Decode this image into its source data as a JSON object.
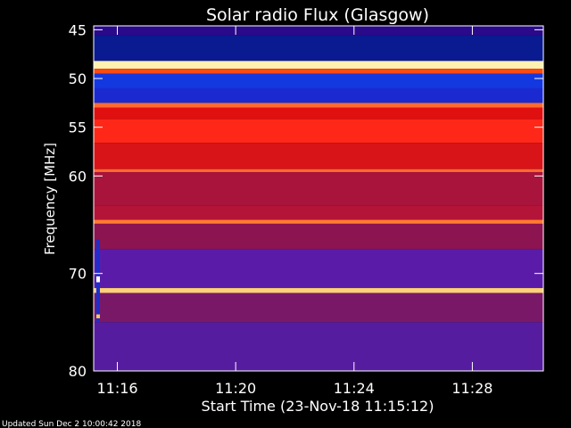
{
  "chart_data": {
    "type": "heatmap",
    "title": "Solar radio Flux (Glasgow)",
    "ylabel": "Frequency [MHz]",
    "xlabel": "Start Time (23-Nov-18 11:15:12)",
    "footer": "Updated Sun Dec  2 10:00:42 2018",
    "x_unit": "minutes after 11:15:12",
    "xlim": [
      0,
      15.2
    ],
    "ylim": [
      80,
      44.6
    ],
    "x_ticks": [
      {
        "value": 0.8,
        "label": "11:16"
      },
      {
        "value": 4.8,
        "label": "11:20"
      },
      {
        "value": 8.8,
        "label": "11:24"
      },
      {
        "value": 12.8,
        "label": "11:28"
      }
    ],
    "y_ticks": [
      {
        "value": 45,
        "label": "45"
      },
      {
        "value": 50,
        "label": "50"
      },
      {
        "value": 55,
        "label": "55"
      },
      {
        "value": 60,
        "label": "60"
      },
      {
        "value": 70,
        "label": "70"
      },
      {
        "value": 80,
        "label": "80"
      }
    ],
    "bands": [
      {
        "f0": 44.6,
        "f1": 45.6,
        "color": "#2a0a8a"
      },
      {
        "f0": 45.6,
        "f1": 48.2,
        "color": "#0a1a90"
      },
      {
        "f0": 48.2,
        "f1": 49.0,
        "color": "#fff2b0"
      },
      {
        "f0": 49.0,
        "f1": 49.5,
        "color": "#ff4a10"
      },
      {
        "f0": 49.5,
        "f1": 51.0,
        "color": "#1438e0"
      },
      {
        "f0": 51.0,
        "f1": 52.5,
        "color": "#1a2ad0"
      },
      {
        "f0": 52.5,
        "f1": 53.0,
        "color": "#ff6a30"
      },
      {
        "f0": 53.0,
        "f1": 54.2,
        "color": "#e01010"
      },
      {
        "f0": 54.2,
        "f1": 56.6,
        "color": "#ff2818"
      },
      {
        "f0": 56.6,
        "f1": 59.3,
        "color": "#d81418"
      },
      {
        "f0": 59.3,
        "f1": 59.6,
        "color": "#ff6a30"
      },
      {
        "f0": 59.6,
        "f1": 63.0,
        "color": "#a8143c"
      },
      {
        "f0": 63.0,
        "f1": 64.5,
        "color": "#b41438"
      },
      {
        "f0": 64.5,
        "f1": 64.9,
        "color": "#ff7a30"
      },
      {
        "f0": 64.9,
        "f1": 67.5,
        "color": "#8c1450"
      },
      {
        "f0": 67.5,
        "f1": 71.5,
        "color": "#5a1ca8"
      },
      {
        "f0": 71.5,
        "f1": 72.0,
        "color": "#ffd27a"
      },
      {
        "f0": 72.0,
        "f1": 75.0,
        "color": "#7a1868"
      },
      {
        "f0": 75.0,
        "f1": 80.0,
        "color": "#561ca0"
      }
    ],
    "events": [
      {
        "x": 0.15,
        "f0": 66.5,
        "f1": 75.0,
        "color": "#1a30d0"
      },
      {
        "x": 0.15,
        "f0": 70.3,
        "f1": 70.9,
        "color": "#ffffff"
      },
      {
        "x": 0.15,
        "f0": 74.2,
        "f1": 74.6,
        "color": "#ffc850"
      }
    ]
  }
}
